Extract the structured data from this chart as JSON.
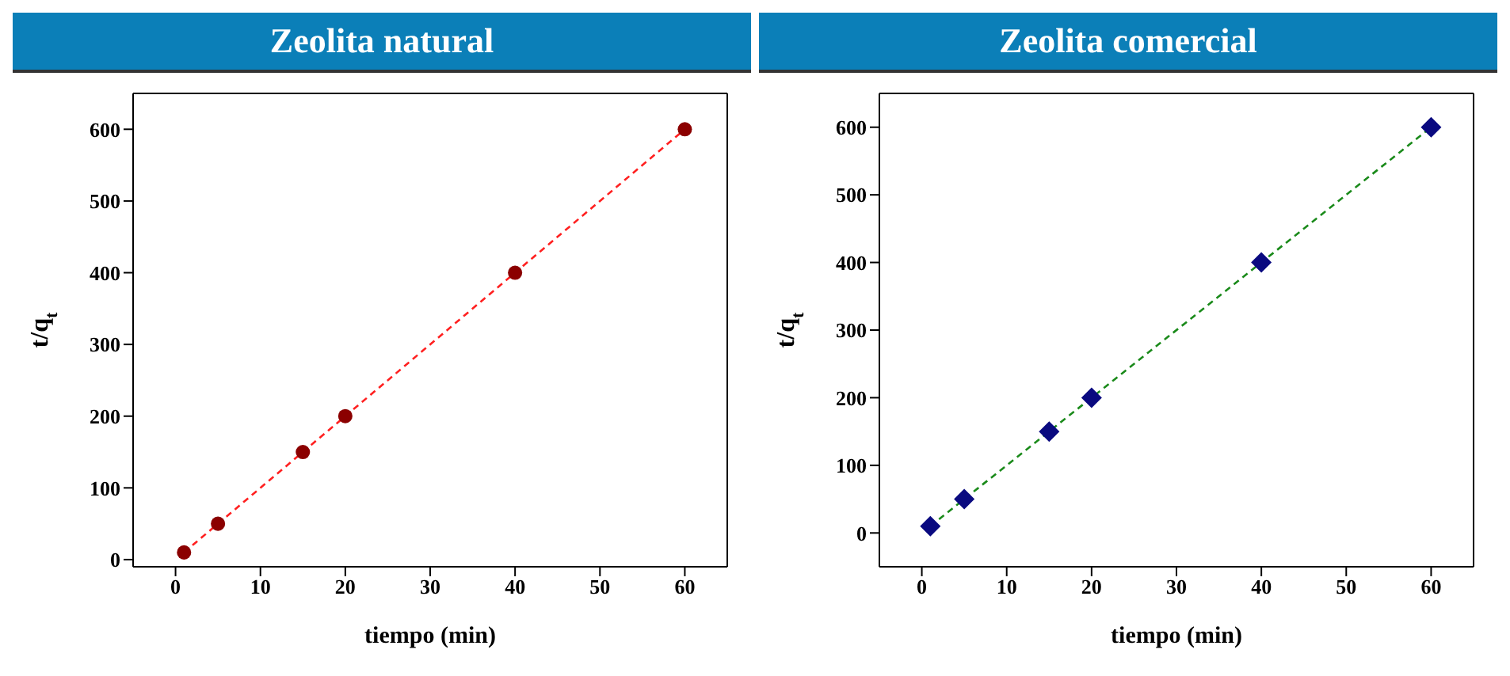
{
  "chart_data": [
    {
      "type": "scatter",
      "title": "Zeolita natural",
      "xlabel": "tiempo (min)",
      "ylabel": "t/q$_{t}$",
      "xlim": [
        -5,
        65
      ],
      "xticks": [
        0,
        10,
        20,
        30,
        40,
        50,
        60
      ],
      "ylim": [
        -10,
        650
      ],
      "yticks": [
        0,
        100,
        200,
        300,
        400,
        500,
        600
      ],
      "series": [
        {
          "marker": "circle",
          "color": "#8b0000",
          "x": [
            1,
            5,
            15,
            20,
            40,
            60
          ],
          "values": [
            10,
            50,
            150,
            200,
            400,
            600
          ]
        },
        {
          "type": "line",
          "marker": "none",
          "line_style": "dashed",
          "color": "#ff2020",
          "x": [
            1,
            60
          ],
          "values": [
            10,
            600
          ]
        }
      ]
    },
    {
      "type": "scatter",
      "title": "Zeolita comercial",
      "xlabel": "tiempo (min)",
      "ylabel": "t/q$_{t}$",
      "xlim": [
        -5,
        65
      ],
      "xticks": [
        0,
        10,
        20,
        30,
        40,
        50,
        60
      ],
      "ylim": [
        -50,
        650
      ],
      "yticks": [
        0,
        100,
        200,
        300,
        400,
        500,
        600
      ],
      "series": [
        {
          "marker": "diamond",
          "color": "#0a0a80",
          "x": [
            1,
            5,
            15,
            20,
            40,
            60
          ],
          "values": [
            10,
            50,
            150,
            200,
            400,
            600
          ]
        },
        {
          "type": "line",
          "marker": "none",
          "line_style": "dashed",
          "color": "#1a8a1a",
          "x": [
            1,
            60
          ],
          "values": [
            10,
            600
          ]
        }
      ]
    }
  ]
}
